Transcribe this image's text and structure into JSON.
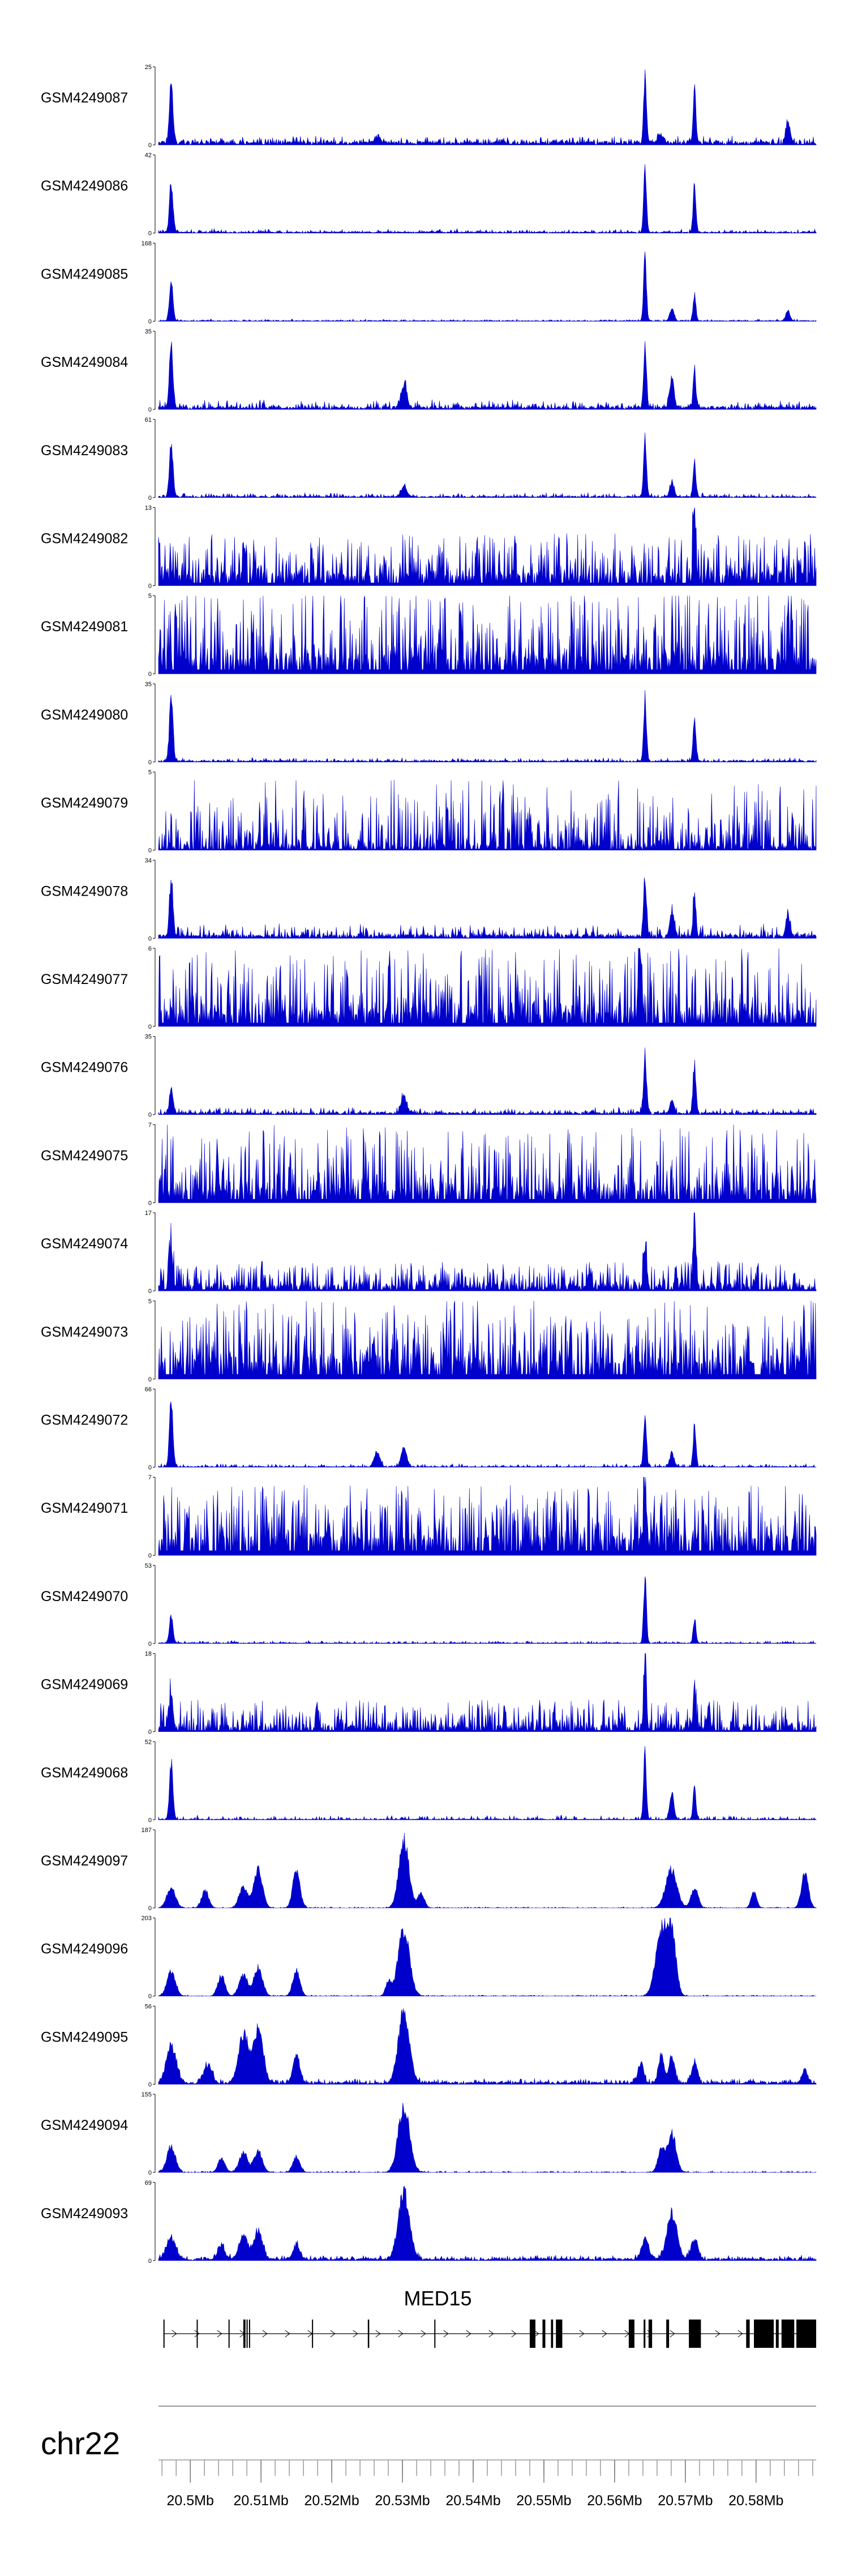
{
  "chart_data": {
    "type": "area",
    "title": "",
    "chromosome": "chr22",
    "x_unit": "Mb",
    "xlim": [
      20.4955,
      20.5885
    ],
    "x_ticks": [
      "20.5Mb",
      "20.51Mb",
      "20.52Mb",
      "20.53Mb",
      "20.54Mb",
      "20.55Mb",
      "20.56Mb",
      "20.57Mb",
      "20.58Mb"
    ],
    "x_tick_values": [
      20.5,
      20.51,
      20.52,
      20.53,
      20.54,
      20.55,
      20.56,
      20.57,
      20.58
    ],
    "colors": {
      "signal": "#0000cc",
      "gene": "#000000",
      "axis": "#000000"
    },
    "tracks": [
      {
        "name": "GSM4249087",
        "ymax": "25",
        "ymin": "0",
        "profile": "sparse",
        "seed": 11,
        "baseline": 0.05,
        "noise": 0.08,
        "peaks": [
          [
            20.4973,
            0.85,
            0.00025
          ],
          [
            20.5264,
            0.1,
            0.0004
          ],
          [
            20.5643,
            1.0,
            0.0002
          ],
          [
            20.5665,
            0.12,
            0.0004
          ],
          [
            20.5713,
            0.75,
            0.0002
          ],
          [
            20.5845,
            0.3,
            0.0003
          ]
        ]
      },
      {
        "name": "GSM4249086",
        "ymax": "42",
        "ymin": "0",
        "profile": "sparse",
        "seed": 12,
        "baseline": 0.02,
        "noise": 0.04,
        "peaks": [
          [
            20.4973,
            0.72,
            0.00025
          ],
          [
            20.5643,
            0.9,
            0.0002
          ],
          [
            20.5713,
            0.68,
            0.0002
          ]
        ]
      },
      {
        "name": "GSM4249085",
        "ymax": "168",
        "ymin": "0",
        "profile": "sparse",
        "seed": 13,
        "baseline": 0.01,
        "noise": 0.02,
        "peaks": [
          [
            20.4973,
            0.6,
            0.00025
          ],
          [
            20.5643,
            0.95,
            0.0002
          ],
          [
            20.5681,
            0.18,
            0.0003
          ],
          [
            20.5713,
            0.38,
            0.0002
          ],
          [
            20.5845,
            0.15,
            0.0003
          ]
        ]
      },
      {
        "name": "GSM4249084",
        "ymax": "35",
        "ymin": "0",
        "profile": "sparse",
        "seed": 14,
        "baseline": 0.04,
        "noise": 0.09,
        "peaks": [
          [
            20.4973,
            0.95,
            0.00025
          ],
          [
            20.5302,
            0.35,
            0.0004
          ],
          [
            20.5643,
            0.88,
            0.0002
          ],
          [
            20.5681,
            0.45,
            0.0003
          ],
          [
            20.5713,
            0.55,
            0.0002
          ]
        ]
      },
      {
        "name": "GSM4249083",
        "ymax": "61",
        "ymin": "0",
        "profile": "sparse",
        "seed": 15,
        "baseline": 0.02,
        "noise": 0.05,
        "peaks": [
          [
            20.4973,
            0.8,
            0.00025
          ],
          [
            20.5302,
            0.15,
            0.0004
          ],
          [
            20.5643,
            0.9,
            0.0002
          ],
          [
            20.5681,
            0.2,
            0.0003
          ],
          [
            20.5713,
            0.5,
            0.0002
          ]
        ]
      },
      {
        "name": "GSM4249082",
        "ymax": "13",
        "ymin": "0",
        "profile": "noisy",
        "seed": 16,
        "baseline": 0.12,
        "noise": 0.55,
        "peaks": [
          [
            20.5713,
            0.95,
            0.0002
          ]
        ]
      },
      {
        "name": "GSM4249081",
        "ymax": "5",
        "ymin": "0",
        "profile": "noisy",
        "seed": 17,
        "baseline": 0.18,
        "noise": 0.9,
        "peaks": []
      },
      {
        "name": "GSM4249080",
        "ymax": "35",
        "ymin": "0",
        "profile": "sparse",
        "seed": 18,
        "baseline": 0.02,
        "noise": 0.04,
        "peaks": [
          [
            20.4973,
            0.95,
            0.00025
          ],
          [
            20.5643,
            0.92,
            0.0002
          ],
          [
            20.5713,
            0.62,
            0.0002
          ]
        ]
      },
      {
        "name": "GSM4249079",
        "ymax": "5",
        "ymin": "0",
        "profile": "noisy",
        "seed": 19,
        "baseline": 0.05,
        "noise": 0.85,
        "peaks": []
      },
      {
        "name": "GSM4249078",
        "ymax": "34",
        "ymin": "0",
        "profile": "sparse",
        "seed": 20,
        "baseline": 0.05,
        "noise": 0.14,
        "peaks": [
          [
            20.4973,
            0.7,
            0.00025
          ],
          [
            20.5643,
            0.88,
            0.0002
          ],
          [
            20.5681,
            0.35,
            0.0003
          ],
          [
            20.5713,
            0.6,
            0.0002
          ],
          [
            20.5845,
            0.3,
            0.0003
          ]
        ]
      },
      {
        "name": "GSM4249077",
        "ymax": "6",
        "ymin": "0",
        "profile": "noisy",
        "seed": 21,
        "baseline": 0.15,
        "noise": 0.85,
        "peaks": [
          [
            20.5637,
            0.95,
            0.0002
          ]
        ]
      },
      {
        "name": "GSM4249076",
        "ymax": "35",
        "ymin": "0",
        "profile": "sparse",
        "seed": 22,
        "baseline": 0.03,
        "noise": 0.07,
        "peaks": [
          [
            20.4973,
            0.38,
            0.00025
          ],
          [
            20.5302,
            0.25,
            0.0004
          ],
          [
            20.5643,
            0.9,
            0.0002
          ],
          [
            20.5681,
            0.2,
            0.0003
          ],
          [
            20.5713,
            0.72,
            0.0002
          ]
        ]
      },
      {
        "name": "GSM4249075",
        "ymax": "7",
        "ymin": "0",
        "profile": "noisy",
        "seed": 23,
        "baseline": 0.15,
        "noise": 0.85,
        "peaks": []
      },
      {
        "name": "GSM4249074",
        "ymax": "17",
        "ymin": "0",
        "profile": "noisy",
        "seed": 24,
        "baseline": 0.06,
        "noise": 0.32,
        "peaks": [
          [
            20.4973,
            0.55,
            0.00025
          ],
          [
            20.5643,
            0.62,
            0.0002
          ],
          [
            20.5713,
            0.95,
            0.0002
          ]
        ]
      },
      {
        "name": "GSM4249073",
        "ymax": "5",
        "ymin": "0",
        "profile": "noisy",
        "seed": 25,
        "baseline": 0.2,
        "noise": 0.85,
        "peaks": []
      },
      {
        "name": "GSM4249072",
        "ymax": "66",
        "ymin": "0",
        "profile": "sparse",
        "seed": 26,
        "baseline": 0.01,
        "noise": 0.04,
        "peaks": [
          [
            20.4973,
            0.95,
            0.00025
          ],
          [
            20.5264,
            0.22,
            0.0004
          ],
          [
            20.5302,
            0.28,
            0.0004
          ],
          [
            20.5643,
            0.75,
            0.0002
          ],
          [
            20.5681,
            0.2,
            0.0003
          ],
          [
            20.5713,
            0.6,
            0.0002
          ]
        ]
      },
      {
        "name": "GSM4249071",
        "ymax": "7",
        "ymin": "0",
        "profile": "noisy",
        "seed": 27,
        "baseline": 0.2,
        "noise": 0.7,
        "peaks": [
          [
            20.5643,
            0.95,
            0.0002
          ]
        ]
      },
      {
        "name": "GSM4249070",
        "ymax": "53",
        "ymin": "0",
        "profile": "sparse",
        "seed": 28,
        "baseline": 0.01,
        "noise": 0.03,
        "peaks": [
          [
            20.4973,
            0.4,
            0.00025
          ],
          [
            20.5643,
            0.95,
            0.0002
          ],
          [
            20.5713,
            0.35,
            0.0002
          ]
        ]
      },
      {
        "name": "GSM4249069",
        "ymax": "18",
        "ymin": "0",
        "profile": "noisy",
        "seed": 29,
        "baseline": 0.06,
        "noise": 0.35,
        "peaks": [
          [
            20.4973,
            0.55,
            0.00025
          ],
          [
            20.5643,
            0.95,
            0.0002
          ],
          [
            20.5713,
            0.55,
            0.0002
          ]
        ]
      },
      {
        "name": "GSM4249068",
        "ymax": "52",
        "ymin": "0",
        "profile": "sparse",
        "seed": 30,
        "baseline": 0.01,
        "noise": 0.05,
        "peaks": [
          [
            20.4973,
            0.82,
            0.00025
          ],
          [
            20.5643,
            0.95,
            0.0002
          ],
          [
            20.5681,
            0.38,
            0.0003
          ],
          [
            20.5713,
            0.5,
            0.0002
          ]
        ]
      },
      {
        "name": "GSM4249097",
        "ymax": "187",
        "ymin": "0",
        "profile": "broad",
        "seed": 31,
        "baseline": 0.0,
        "noise": 0.015,
        "peaks": [
          [
            20.4973,
            0.3,
            0.0006
          ],
          [
            20.5021,
            0.25,
            0.0005
          ],
          [
            20.5075,
            0.3,
            0.0006
          ],
          [
            20.5096,
            0.55,
            0.0006
          ],
          [
            20.515,
            0.55,
            0.0005
          ],
          [
            20.5302,
            1.0,
            0.0007
          ],
          [
            20.5326,
            0.2,
            0.0005
          ],
          [
            20.568,
            0.55,
            0.0008
          ],
          [
            20.5713,
            0.28,
            0.0005
          ],
          [
            20.5797,
            0.22,
            0.0004
          ],
          [
            20.5869,
            0.5,
            0.0005
          ]
        ]
      },
      {
        "name": "GSM4249096",
        "ymax": "203",
        "ymin": "0",
        "profile": "broad",
        "seed": 32,
        "baseline": 0.0,
        "noise": 0.015,
        "peaks": [
          [
            20.4973,
            0.35,
            0.0006
          ],
          [
            20.5044,
            0.3,
            0.0005
          ],
          [
            20.5075,
            0.3,
            0.0006
          ],
          [
            20.5096,
            0.42,
            0.0006
          ],
          [
            20.515,
            0.38,
            0.0005
          ],
          [
            20.528,
            0.2,
            0.0004
          ],
          [
            20.5302,
            0.95,
            0.0008
          ],
          [
            20.5666,
            0.95,
            0.0008
          ],
          [
            20.5681,
            0.85,
            0.0006
          ]
        ]
      },
      {
        "name": "GSM4249095",
        "ymax": "56",
        "ymin": "0",
        "profile": "broad",
        "seed": 33,
        "baseline": 0.03,
        "noise": 0.05,
        "peaks": [
          [
            20.4973,
            0.55,
            0.0007
          ],
          [
            20.5025,
            0.25,
            0.0006
          ],
          [
            20.5075,
            0.68,
            0.0007
          ],
          [
            20.5096,
            0.75,
            0.0007
          ],
          [
            20.515,
            0.4,
            0.0005
          ],
          [
            20.5302,
            1.0,
            0.0008
          ],
          [
            20.5637,
            0.3,
            0.0004
          ],
          [
            20.5666,
            0.4,
            0.0004
          ],
          [
            20.5681,
            0.38,
            0.0004
          ],
          [
            20.5713,
            0.32,
            0.0004
          ],
          [
            20.5869,
            0.2,
            0.0004
          ]
        ]
      },
      {
        "name": "GSM4249094",
        "ymax": "155",
        "ymin": "0",
        "profile": "broad",
        "seed": 34,
        "baseline": 0.0,
        "noise": 0.02,
        "peaks": [
          [
            20.4973,
            0.38,
            0.0006
          ],
          [
            20.5044,
            0.2,
            0.0005
          ],
          [
            20.5075,
            0.28,
            0.0006
          ],
          [
            20.5096,
            0.3,
            0.0006
          ],
          [
            20.515,
            0.22,
            0.0005
          ],
          [
            20.5302,
            0.95,
            0.0008
          ],
          [
            20.5666,
            0.32,
            0.0005
          ],
          [
            20.5681,
            0.55,
            0.0006
          ]
        ]
      },
      {
        "name": "GSM4249093",
        "ymax": "69",
        "ymin": "0",
        "profile": "broad",
        "seed": 35,
        "baseline": 0.03,
        "noise": 0.05,
        "peaks": [
          [
            20.4973,
            0.3,
            0.0007
          ],
          [
            20.5044,
            0.2,
            0.0005
          ],
          [
            20.5075,
            0.35,
            0.0006
          ],
          [
            20.5096,
            0.4,
            0.0006
          ],
          [
            20.515,
            0.2,
            0.0005
          ],
          [
            20.5302,
            0.95,
            0.0008
          ],
          [
            20.5643,
            0.3,
            0.0005
          ],
          [
            20.5681,
            0.65,
            0.0007
          ],
          [
            20.5713,
            0.3,
            0.0005
          ]
        ]
      }
    ],
    "gene": {
      "name": "MED15",
      "start": 20.4962,
      "end": 20.5885,
      "exons": [
        [
          20.4962,
          20.49635
        ],
        [
          20.5009,
          20.50105
        ],
        [
          20.5054,
          20.50555
        ],
        [
          20.5075,
          20.5078
        ],
        [
          20.50795,
          20.50805
        ],
        [
          20.5083,
          20.50845
        ],
        [
          20.5172,
          20.51735
        ],
        [
          20.5251,
          20.5253
        ],
        [
          20.5345,
          20.53465
        ],
        [
          20.548,
          20.5488
        ],
        [
          20.5498,
          20.5502
        ],
        [
          20.551,
          20.5513
        ],
        [
          20.5517,
          20.5526
        ],
        [
          20.562,
          20.5628
        ],
        [
          20.5641,
          20.56435
        ],
        [
          20.5648,
          20.5653
        ],
        [
          20.5673,
          20.5677
        ],
        [
          20.5705,
          20.5722
        ],
        [
          20.5786,
          20.5791
        ],
        [
          20.5797,
          20.5825
        ],
        [
          20.5828,
          20.5832
        ],
        [
          20.5836,
          20.5854
        ],
        [
          20.5857,
          20.5885
        ]
      ]
    }
  }
}
